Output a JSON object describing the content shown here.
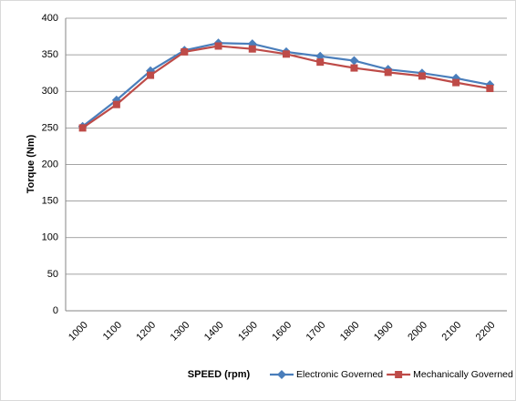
{
  "chart_data": {
    "type": "line",
    "x_label": "SPEED (rpm)",
    "y_label": "Torque (Nm)",
    "categories": [
      "1000",
      "1100",
      "1200",
      "1300",
      "1400",
      "1500",
      "1600",
      "1700",
      "1800",
      "1900",
      "2000",
      "2100",
      "2200"
    ],
    "series": [
      {
        "name": "Electronic Governed",
        "color": "#4a7ebb",
        "marker": "diamond",
        "values": [
          252,
          288,
          328,
          356,
          366,
          365,
          354,
          348,
          342,
          330,
          325,
          318,
          309
        ]
      },
      {
        "name": "Mechanically Governed",
        "color": "#be4b48",
        "marker": "square",
        "values": [
          250,
          282,
          322,
          354,
          362,
          358,
          351,
          340,
          332,
          326,
          321,
          312,
          304
        ]
      }
    ],
    "ylim": [
      0,
      400
    ],
    "yticks": [
      0,
      50,
      100,
      150,
      200,
      250,
      300,
      350,
      400
    ],
    "grid": true,
    "legend": "bottom-right"
  }
}
